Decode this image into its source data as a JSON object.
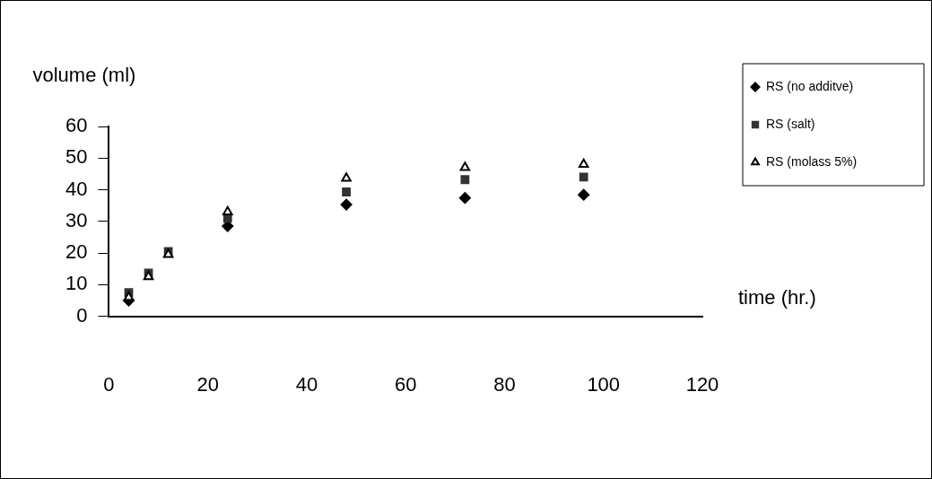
{
  "chart_data": {
    "type": "scatter",
    "xlabel": "time (hr.)",
    "ylabel": "volume (ml)",
    "xlim": [
      0,
      120
    ],
    "xticks": [
      0,
      20,
      40,
      60,
      80,
      100,
      120
    ],
    "ylim": [
      0,
      60
    ],
    "yticks": [
      0,
      10,
      20,
      30,
      40,
      50,
      60
    ],
    "grid": false,
    "legend": "top right",
    "series": [
      {
        "name": "RS (no additve)",
        "color": "#000000",
        "marker": "diamond",
        "x": [
          4,
          8,
          12,
          24,
          48,
          72,
          96
        ],
        "values": [
          5,
          null,
          null,
          28.5,
          35.3,
          37.4,
          38.4
        ]
      },
      {
        "name": "RS (salt)",
        "color": "#333333",
        "marker": "square",
        "x": [
          4,
          8,
          12,
          24,
          48,
          72,
          96
        ],
        "values": [
          7.5,
          13.7,
          20.5,
          31,
          39.3,
          43.2,
          44
        ]
      },
      {
        "name": "RS (molass 5%)",
        "color": "#000000",
        "marker": "triangle",
        "x": [
          4,
          8,
          12,
          24,
          48,
          72,
          96
        ],
        "values": [
          6,
          12.5,
          19.5,
          33,
          43.6,
          47,
          48
        ]
      }
    ]
  }
}
